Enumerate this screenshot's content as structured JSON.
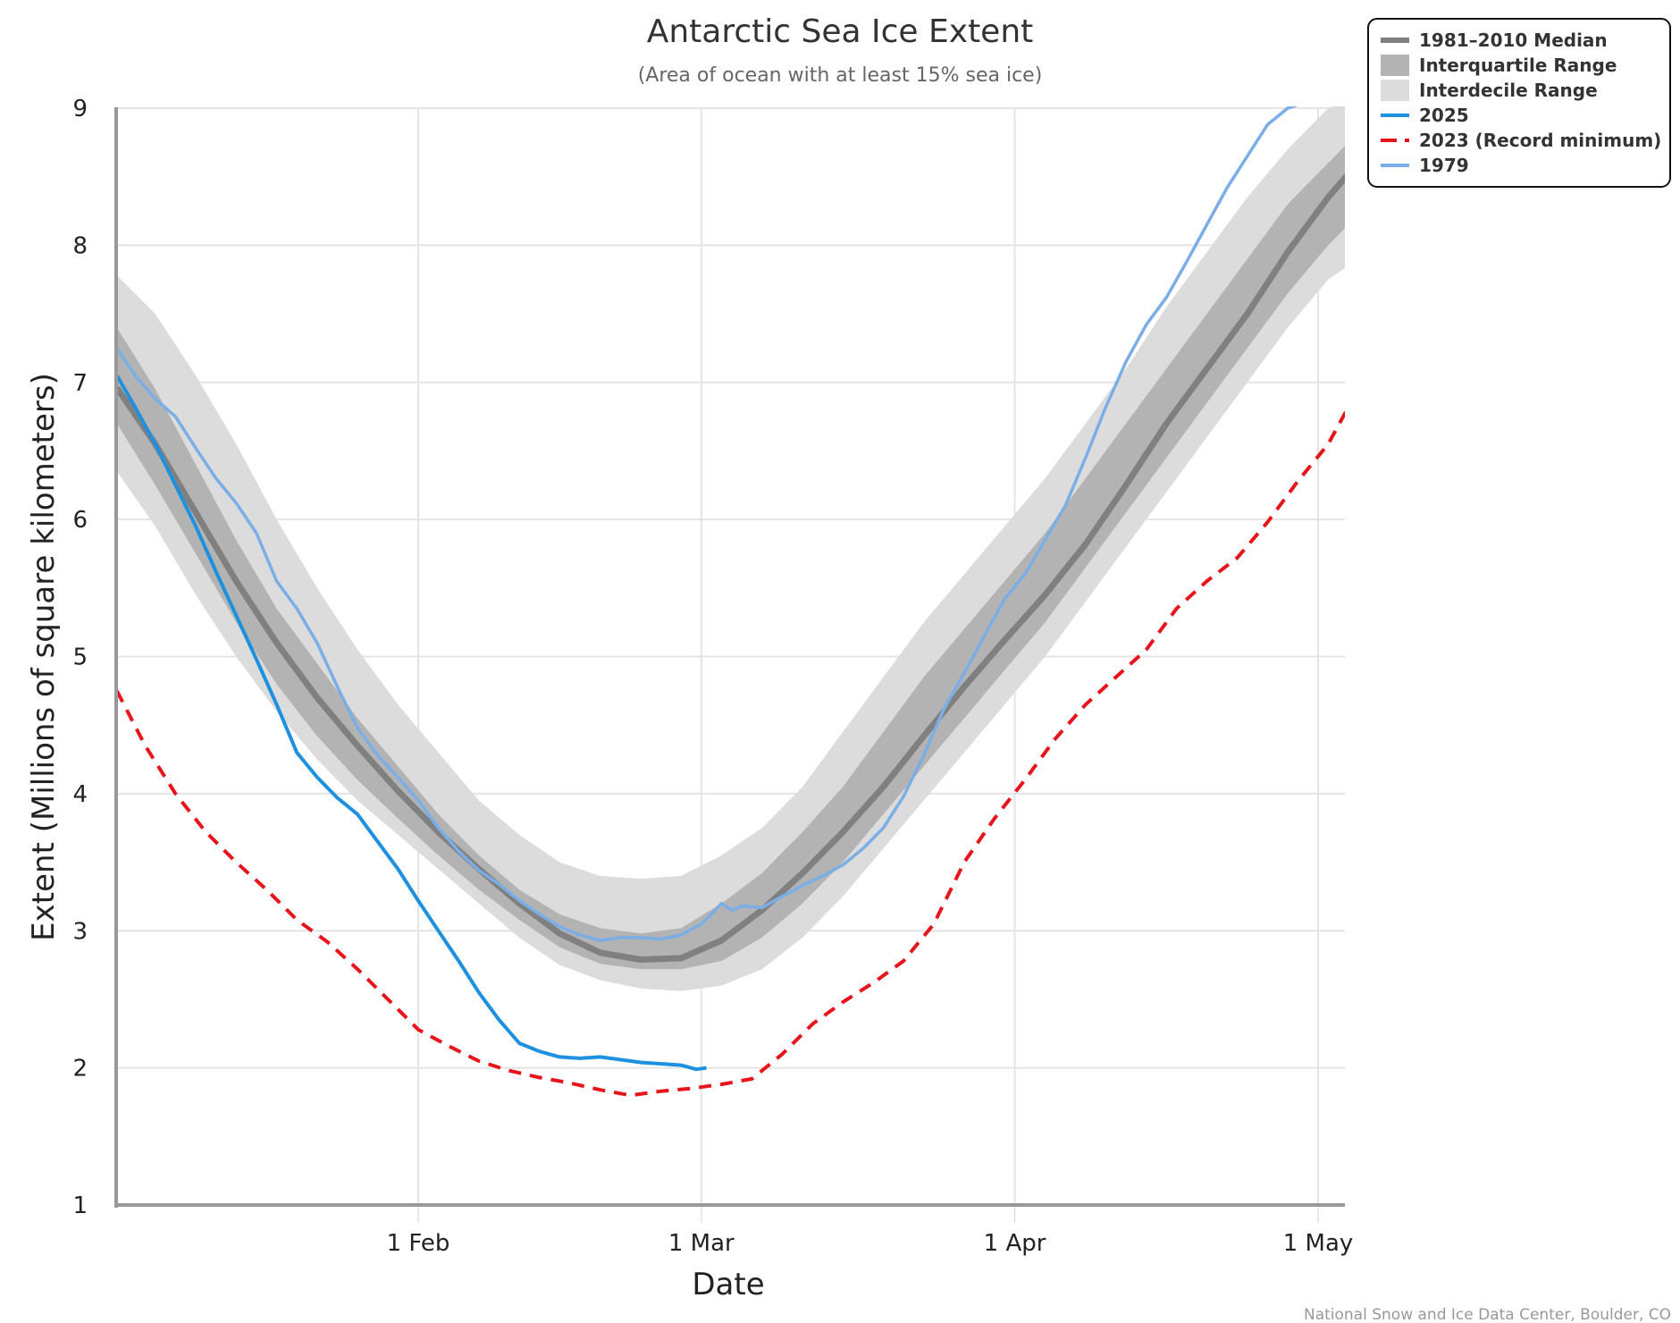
{
  "chart_data": {
    "type": "line",
    "title": "Antarctic Sea Ice Extent",
    "subtitle": "(Area of ocean with at least 15% sea ice)",
    "xlabel": "Date",
    "ylabel": "Extent (Millions of square kilometers)",
    "credits": "National Snow and Ice Data Center, Boulder, CO",
    "x_unit": "day_of_year",
    "xlim": [
      2.2,
      124
    ],
    "ylim": [
      1,
      9
    ],
    "grid": true,
    "legend_position": "top-right",
    "x_ticks": [
      {
        "day": 32,
        "label": "1 Feb"
      },
      {
        "day": 60,
        "label": "1 Mar"
      },
      {
        "day": 91,
        "label": "1 Apr"
      },
      {
        "day": 121,
        "label": "1 May"
      }
    ],
    "y_ticks": [
      1,
      2,
      3,
      4,
      5,
      6,
      7,
      8,
      9
    ],
    "colors": {
      "median": "#808080",
      "interquartile": "#b3b3b3",
      "interdecile": "#dcdcdc",
      "y2025": "#1e90e0",
      "y2023": "#e8141c",
      "y1979": "#7aaee6",
      "grid": "#e4e4e4",
      "axis": "#999999"
    },
    "legend": [
      {
        "key": "median",
        "label": "1981–2010 Median",
        "symbol": "thick-line"
      },
      {
        "key": "interquartile",
        "label": "Interquartile Range",
        "symbol": "box"
      },
      {
        "key": "interdecile",
        "label": "Interdecile Range",
        "symbol": "box"
      },
      {
        "key": "y2025",
        "label": "2025",
        "symbol": "line"
      },
      {
        "key": "y2023",
        "label": "2023 (Record minimum)",
        "symbol": "dash"
      },
      {
        "key": "y1979",
        "label": "1979",
        "symbol": "line"
      }
    ],
    "x": [
      2.2,
      6,
      10,
      14,
      18,
      22,
      26,
      30,
      34,
      38,
      42,
      46,
      50,
      54,
      58,
      62,
      66,
      70,
      74,
      78,
      82,
      86,
      90,
      94,
      98,
      102,
      106,
      110,
      114,
      118,
      122,
      124
    ],
    "bands": {
      "interdecile": {
        "low": [
          6.35,
          5.95,
          5.45,
          5.0,
          4.6,
          4.25,
          3.95,
          3.7,
          3.45,
          3.2,
          2.95,
          2.75,
          2.64,
          2.58,
          2.56,
          2.6,
          2.72,
          2.95,
          3.25,
          3.6,
          3.95,
          4.3,
          4.65,
          5.0,
          5.4,
          5.8,
          6.2,
          6.6,
          7.0,
          7.4,
          7.75,
          7.85
        ],
        "high": [
          7.78,
          7.5,
          7.05,
          6.55,
          6.0,
          5.5,
          5.05,
          4.65,
          4.3,
          3.95,
          3.7,
          3.5,
          3.4,
          3.38,
          3.4,
          3.55,
          3.75,
          4.05,
          4.45,
          4.85,
          5.25,
          5.6,
          5.95,
          6.3,
          6.7,
          7.1,
          7.55,
          7.95,
          8.35,
          8.7,
          9.0,
          9.05
        ]
      },
      "interquartile": {
        "low": [
          6.7,
          6.25,
          5.75,
          5.25,
          4.8,
          4.42,
          4.1,
          3.82,
          3.55,
          3.3,
          3.08,
          2.88,
          2.76,
          2.72,
          2.72,
          2.78,
          2.95,
          3.2,
          3.5,
          3.85,
          4.2,
          4.55,
          4.9,
          5.25,
          5.65,
          6.05,
          6.45,
          6.85,
          7.25,
          7.65,
          8.0,
          8.15
        ],
        "high": [
          7.4,
          6.95,
          6.4,
          5.85,
          5.35,
          4.95,
          4.55,
          4.2,
          3.85,
          3.55,
          3.3,
          3.12,
          3.02,
          2.98,
          3.02,
          3.2,
          3.42,
          3.72,
          4.05,
          4.45,
          4.85,
          5.2,
          5.55,
          5.9,
          6.3,
          6.7,
          7.1,
          7.5,
          7.9,
          8.3,
          8.6,
          8.75
        ]
      }
    },
    "series": [
      {
        "key": "median",
        "name": "1981–2010 Median",
        "x": [
          2.2,
          6,
          10,
          14,
          18,
          22,
          26,
          30,
          34,
          38,
          42,
          46,
          50,
          54,
          58,
          62,
          66,
          70,
          74,
          78,
          82,
          86,
          90,
          94,
          98,
          102,
          106,
          110,
          114,
          118,
          122,
          124
        ],
        "values": [
          6.96,
          6.55,
          6.05,
          5.55,
          5.1,
          4.7,
          4.35,
          4.02,
          3.72,
          3.45,
          3.2,
          2.98,
          2.84,
          2.79,
          2.8,
          2.93,
          3.15,
          3.42,
          3.72,
          4.05,
          4.42,
          4.78,
          5.12,
          5.45,
          5.82,
          6.25,
          6.7,
          7.1,
          7.5,
          7.95,
          8.35,
          8.52
        ]
      },
      {
        "key": "y2025",
        "name": "2025",
        "x": [
          2.2,
          4,
          6,
          8,
          10,
          12,
          14,
          16,
          18,
          20,
          22,
          24,
          26,
          28,
          30,
          32,
          34,
          36,
          38,
          40,
          42,
          44,
          46,
          48,
          50,
          52,
          54,
          56,
          58,
          59.5,
          60.5
        ],
        "values": [
          7.05,
          6.82,
          6.55,
          6.25,
          5.95,
          5.62,
          5.3,
          4.98,
          4.65,
          4.3,
          4.12,
          3.97,
          3.85,
          3.65,
          3.45,
          3.22,
          3.0,
          2.78,
          2.55,
          2.35,
          2.18,
          2.12,
          2.08,
          2.07,
          2.08,
          2.06,
          2.04,
          2.03,
          2.02,
          1.99,
          2.0
        ]
      },
      {
        "key": "y2023",
        "name": "2023 (Record minimum)",
        "x": [
          2.2,
          5,
          8,
          11,
          14,
          17,
          20,
          23,
          26,
          29,
          32,
          35,
          38,
          41,
          44,
          47,
          50,
          53,
          56,
          59,
          62,
          65,
          68,
          71,
          74,
          77,
          80,
          83,
          86,
          89,
          92,
          95,
          98,
          101,
          104,
          107,
          110,
          113,
          116,
          119,
          122,
          124
        ],
        "values": [
          4.75,
          4.35,
          4.0,
          3.72,
          3.5,
          3.3,
          3.08,
          2.92,
          2.72,
          2.5,
          2.28,
          2.16,
          2.05,
          1.98,
          1.93,
          1.89,
          1.84,
          1.8,
          1.83,
          1.85,
          1.88,
          1.92,
          2.1,
          2.32,
          2.48,
          2.62,
          2.78,
          3.05,
          3.5,
          3.82,
          4.1,
          4.4,
          4.65,
          4.85,
          5.05,
          5.35,
          5.55,
          5.72,
          5.98,
          6.28,
          6.55,
          6.82
        ]
      },
      {
        "key": "y1979",
        "name": "1979",
        "x": [
          2.2,
          4,
          6,
          8,
          10,
          12,
          14,
          16,
          18,
          20,
          22,
          24,
          26,
          28,
          30,
          32,
          34,
          36,
          38,
          40,
          42,
          44,
          46,
          48,
          50,
          52,
          54,
          56,
          58,
          60,
          61,
          62,
          63,
          64,
          66,
          68,
          70,
          72,
          74,
          76,
          78,
          80,
          82,
          84,
          86,
          88,
          90,
          92,
          94,
          96,
          98,
          100,
          102,
          104,
          106,
          108,
          110,
          112,
          114,
          116,
          118,
          120,
          121
        ],
        "values": [
          7.25,
          7.05,
          6.88,
          6.75,
          6.52,
          6.3,
          6.12,
          5.9,
          5.55,
          5.35,
          5.1,
          4.78,
          4.48,
          4.28,
          4.12,
          3.95,
          3.75,
          3.58,
          3.44,
          3.34,
          3.22,
          3.12,
          3.03,
          2.97,
          2.93,
          2.95,
          2.95,
          2.94,
          2.97,
          3.05,
          3.12,
          3.2,
          3.15,
          3.18,
          3.17,
          3.25,
          3.33,
          3.4,
          3.48,
          3.6,
          3.75,
          3.98,
          4.28,
          4.62,
          4.88,
          5.15,
          5.42,
          5.6,
          5.85,
          6.1,
          6.45,
          6.82,
          7.15,
          7.42,
          7.62,
          7.88,
          8.15,
          8.42,
          8.65,
          8.88,
          9.0,
          9.05,
          9.05
        ]
      }
    ]
  }
}
